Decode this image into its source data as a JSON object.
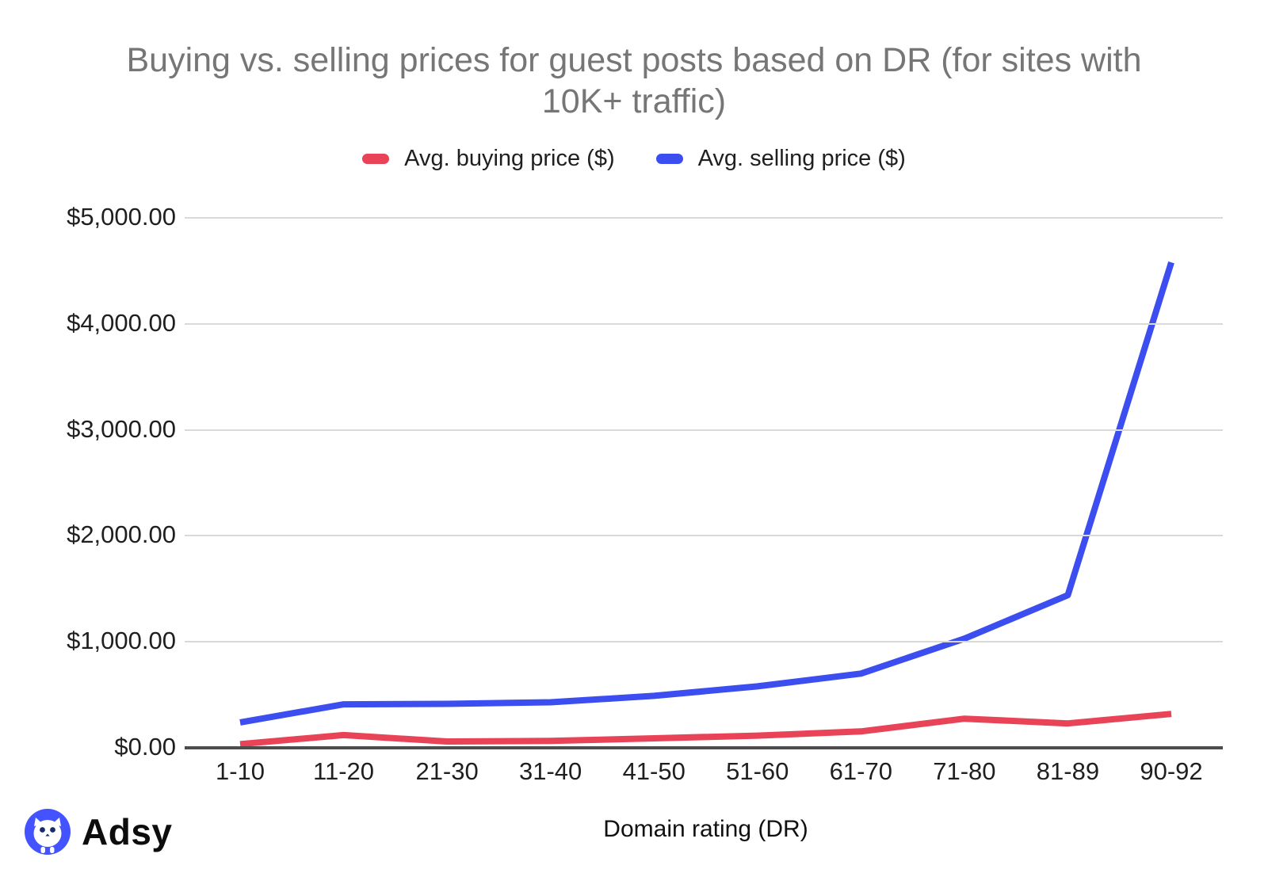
{
  "title": "Buying vs. selling prices for guest posts based on DR (for sites with 10K+ traffic)",
  "chart_data": {
    "type": "line",
    "categories": [
      "1-10",
      "11-20",
      "21-30",
      "31-40",
      "41-50",
      "51-60",
      "61-70",
      "71-80",
      "81-89",
      "90-92"
    ],
    "series": [
      {
        "name": "Avg. buying price ($)",
        "color": "#e84356",
        "values": [
          35,
          120,
          60,
          65,
          90,
          115,
          155,
          275,
          230,
          320
        ]
      },
      {
        "name": "Avg. selling price ($)",
        "color": "#3c4ef0",
        "values": [
          240,
          410,
          415,
          430,
          490,
          580,
          700,
          1030,
          1440,
          4580
        ]
      }
    ],
    "title": "Buying vs. selling prices for guest posts based on DR (for sites with 10K+ traffic)",
    "xlabel": "Domain rating (DR)",
    "ylabel": "",
    "ylim": [
      0,
      5000
    ],
    "y_ticks": [
      {
        "value": 0,
        "label": "$0.00"
      },
      {
        "value": 1000,
        "label": "$1,000.00"
      },
      {
        "value": 2000,
        "label": "$2,000.00"
      },
      {
        "value": 3000,
        "label": "$3,000.00"
      },
      {
        "value": 4000,
        "label": "$4,000.00"
      },
      {
        "value": 5000,
        "label": "$5,000.00"
      }
    ],
    "grid": true,
    "legend_position": "top"
  },
  "colors": {
    "title_text": "#767676",
    "axis_text": "#1f1f1f",
    "gridline": "#d9d9d9",
    "baseline": "#4d4d4d",
    "background": "#ffffff",
    "logo_blue": "#4353ff",
    "owl_eyes": "#1b2a6b"
  },
  "footer": {
    "logo_text": "Adsy"
  }
}
